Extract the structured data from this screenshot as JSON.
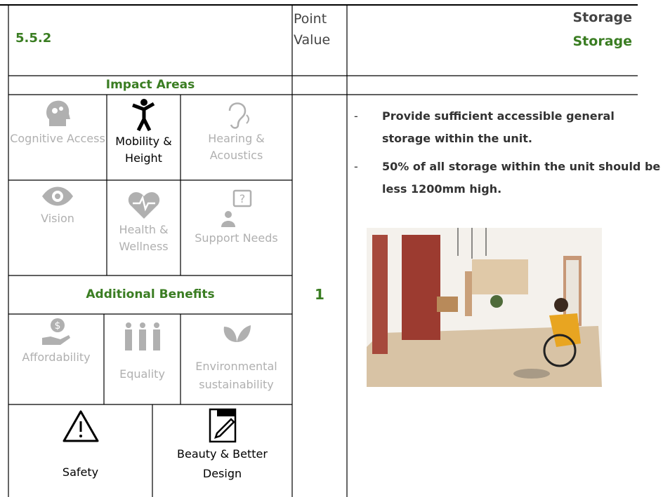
{
  "header": {
    "section": "5.5.2",
    "point_label": "Point Value",
    "title": "Storage",
    "subtitle": "Storage"
  },
  "impact_areas": {
    "heading": "Impact Areas",
    "items": [
      {
        "label": "Cognitive Access",
        "active": false
      },
      {
        "label": "Mobility & Height",
        "active": true
      },
      {
        "label": "Hearing & Acoustics",
        "active": false
      },
      {
        "label": "Vision",
        "active": false
      },
      {
        "label": "Health & Wellness",
        "active": false
      },
      {
        "label": "Support Needs",
        "active": false
      }
    ]
  },
  "additional_benefits": {
    "heading": "Additional Benefits",
    "items": [
      {
        "label": "Affordability",
        "active": false
      },
      {
        "label": "Equality",
        "active": false
      },
      {
        "label": "Environmental sustainability",
        "active": false
      },
      {
        "label": "Safety",
        "active": true
      },
      {
        "label": "Beauty & Better Design",
        "active": true
      }
    ]
  },
  "point_value": 1,
  "requirements": [
    "Provide sufficient accessible general storage within the unit.",
    "50% of all storage within the unit should be less 1200mm high."
  ]
}
